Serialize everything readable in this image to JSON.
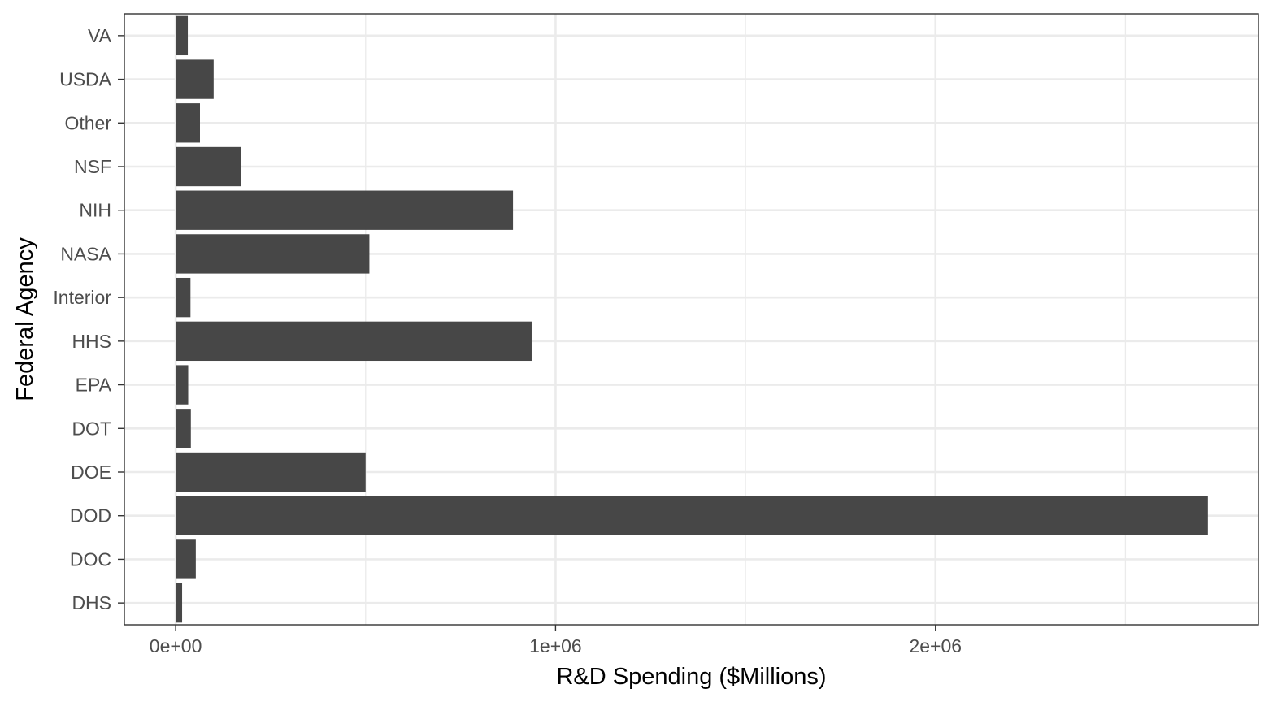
{
  "chart_data": {
    "type": "bar",
    "orientation": "horizontal",
    "categories": [
      "DHS",
      "DOC",
      "DOD",
      "DOE",
      "DOT",
      "EPA",
      "HHS",
      "Interior",
      "NASA",
      "NIH",
      "NSF",
      "Other",
      "USDA",
      "VA"
    ],
    "values": [
      17000,
      53000,
      2717000,
      500000,
      40000,
      33000,
      937000,
      39000,
      510000,
      888000,
      172000,
      64000,
      100000,
      32000
    ],
    "title": "",
    "xlabel": "R&D Spending ($Millions)",
    "ylabel": "Federal Agency",
    "xlim": [
      -135000,
      2850000
    ],
    "x_ticks": [
      0,
      1000000,
      2000000
    ],
    "x_tick_labels": [
      "0e+00",
      "1e+06",
      "2e+06"
    ],
    "grid": true,
    "legend": "none",
    "colors": {
      "bar": "#474747",
      "grid": "#ebebeb",
      "panel_border": "#333333",
      "tick_label": "#4d4d4d",
      "axis_title": "#000000"
    }
  }
}
